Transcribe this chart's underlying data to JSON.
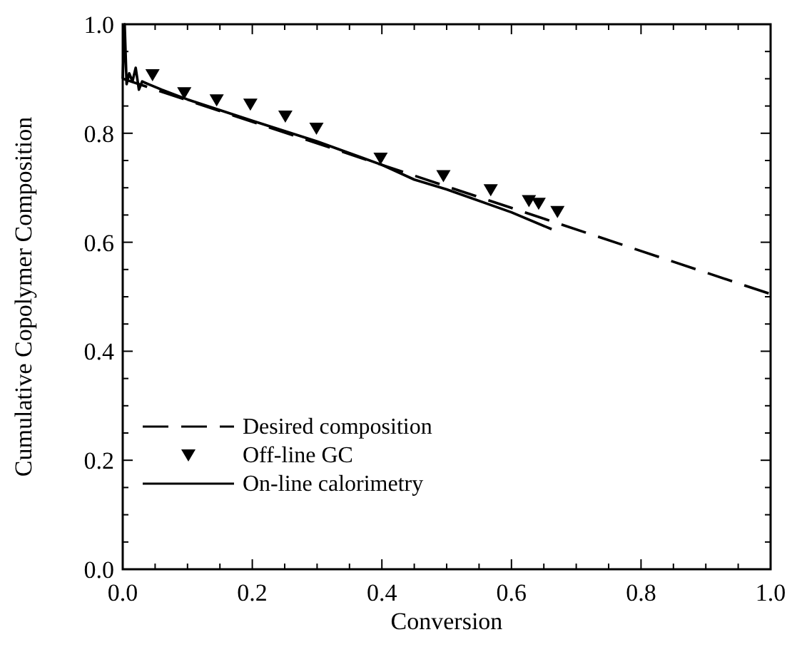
{
  "chart_data": {
    "type": "line",
    "xlabel": "Conversion",
    "ylabel": "Cumulative Copolymer Composition",
    "xlim": [
      0,
      1
    ],
    "ylim": [
      0,
      1
    ],
    "xticks": [
      {
        "value": 0,
        "label": "0.0"
      },
      {
        "value": 0.05,
        "label": null
      },
      {
        "value": 0.1,
        "label": null
      },
      {
        "value": 0.15,
        "label": null
      },
      {
        "value": 0.2,
        "label": "0.2"
      },
      {
        "value": 0.25,
        "label": null
      },
      {
        "value": 0.3,
        "label": null
      },
      {
        "value": 0.35,
        "label": null
      },
      {
        "value": 0.4,
        "label": "0.4"
      },
      {
        "value": 0.45,
        "label": null
      },
      {
        "value": 0.5,
        "label": null
      },
      {
        "value": 0.55,
        "label": null
      },
      {
        "value": 0.6,
        "label": "0.6"
      },
      {
        "value": 0.65,
        "label": null
      },
      {
        "value": 0.7,
        "label": null
      },
      {
        "value": 0.75,
        "label": null
      },
      {
        "value": 0.8,
        "label": "0.8"
      },
      {
        "value": 0.85,
        "label": null
      },
      {
        "value": 0.9,
        "label": null
      },
      {
        "value": 0.95,
        "label": null
      },
      {
        "value": 1,
        "label": "1.0"
      }
    ],
    "yticks": [
      {
        "value": 0,
        "label": "0.0"
      },
      {
        "value": 0.05,
        "label": null
      },
      {
        "value": 0.1,
        "label": null
      },
      {
        "value": 0.15,
        "label": null
      },
      {
        "value": 0.2,
        "label": "0.2"
      },
      {
        "value": 0.25,
        "label": null
      },
      {
        "value": 0.3,
        "label": null
      },
      {
        "value": 0.35,
        "label": null
      },
      {
        "value": 0.4,
        "label": "0.4"
      },
      {
        "value": 0.45,
        "label": null
      },
      {
        "value": 0.5,
        "label": null
      },
      {
        "value": 0.55,
        "label": null
      },
      {
        "value": 0.6,
        "label": "0.6"
      },
      {
        "value": 0.65,
        "label": null
      },
      {
        "value": 0.7,
        "label": null
      },
      {
        "value": 0.75,
        "label": null
      },
      {
        "value": 0.8,
        "label": "0.8"
      },
      {
        "value": 0.85,
        "label": null
      },
      {
        "value": 0.9,
        "label": null
      },
      {
        "value": 0.95,
        "label": null
      },
      {
        "value": 1,
        "label": "1.0"
      }
    ],
    "grid": false,
    "legend": "bottom left",
    "series": [
      {
        "name": "Desired composition",
        "line_style": "dashed",
        "marker": "none",
        "color": "#000000",
        "x": [
          0,
          1
        ],
        "values": [
          0.9,
          0.505
        ]
      },
      {
        "name": "Off-line GC",
        "type": "scatter",
        "marker": "triangle",
        "color": "#000000",
        "x": [
          0.046,
          0.095,
          0.145,
          0.197,
          0.251,
          0.299,
          0.398,
          0.495,
          0.568,
          0.627,
          0.642,
          0.671
        ],
        "values": [
          0.907,
          0.874,
          0.861,
          0.853,
          0.831,
          0.809,
          0.754,
          0.722,
          0.696,
          0.676,
          0.671,
          0.656
        ]
      },
      {
        "name": "On-line calorimetry",
        "line_style": "solid",
        "marker": "none",
        "color": "#000000",
        "x": [
          0,
          0.003,
          0.006,
          0.01,
          0.015,
          0.02,
          0.025,
          0.03,
          0.04,
          0.06,
          0.1,
          0.2,
          0.3,
          0.4,
          0.45,
          0.5,
          0.6,
          0.662
        ],
        "values": [
          0.9,
          1.0,
          0.89,
          0.91,
          0.895,
          0.92,
          0.88,
          0.895,
          0.89,
          0.88,
          0.862,
          0.823,
          0.785,
          0.742,
          0.715,
          0.697,
          0.655,
          0.624
        ]
      }
    ]
  }
}
